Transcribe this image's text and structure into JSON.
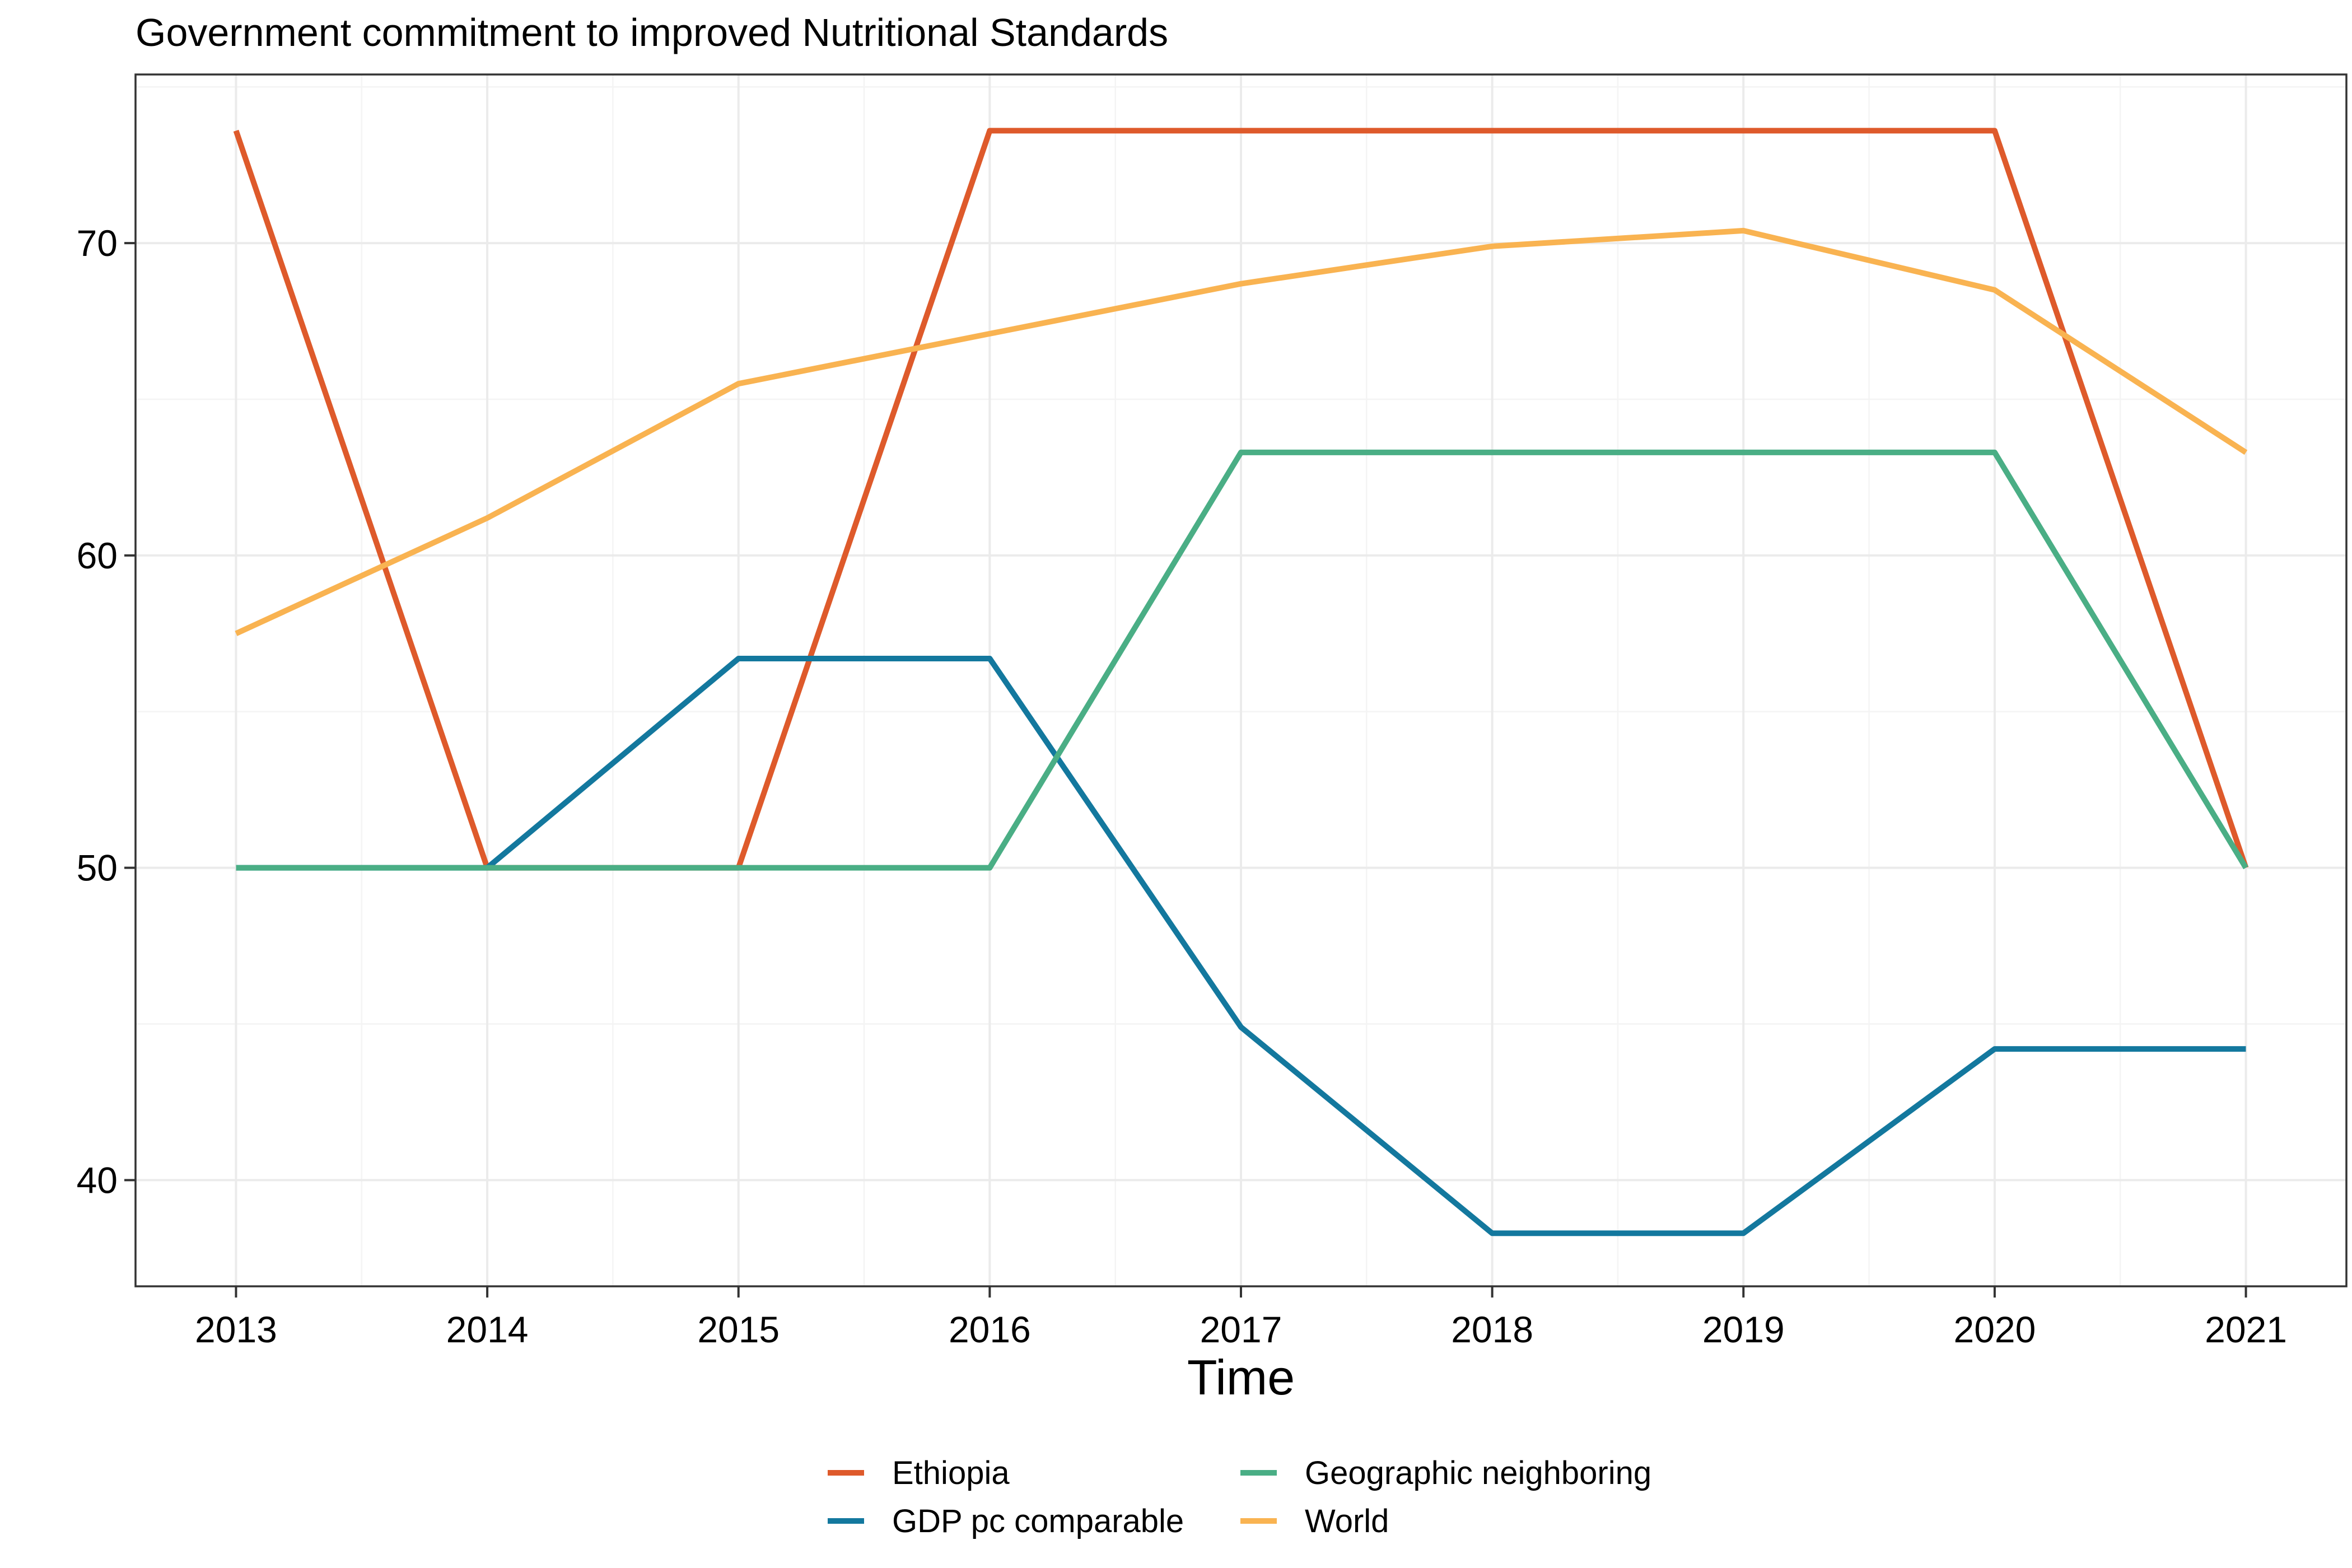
{
  "chart_data": {
    "type": "line",
    "title": "Government commitment to improved Nutritional Standards",
    "xlabel": "Time",
    "ylabel": "",
    "x": [
      2013,
      2014,
      2015,
      2016,
      2017,
      2018,
      2019,
      2020,
      2021
    ],
    "x_ticks": [
      "2013",
      "2014",
      "2015",
      "2016",
      "2017",
      "2018",
      "2019",
      "2020",
      "2021"
    ],
    "y_ticks": [
      "40",
      "50",
      "60",
      "70"
    ],
    "xlim": [
      2012.6,
      2021.4
    ],
    "ylim": [
      36.6,
      75.4
    ],
    "grid": true,
    "legend_position": "bottom",
    "series": [
      {
        "name": "Ethiopia",
        "color": "#DE5A2B",
        "values": [
          73.6,
          50.0,
          50.0,
          73.6,
          73.6,
          73.6,
          73.6,
          73.6,
          50.0
        ]
      },
      {
        "name": "GDP pc comparable",
        "color": "#13789E",
        "values": [
          50.0,
          50.0,
          56.7,
          56.7,
          44.9,
          38.3,
          38.3,
          44.2,
          44.2
        ]
      },
      {
        "name": "Geographic neighboring",
        "color": "#4AAE85",
        "values": [
          50.0,
          50.0,
          50.0,
          50.0,
          63.3,
          63.3,
          63.3,
          63.3,
          50.0
        ]
      },
      {
        "name": "World",
        "color": "#F9B351",
        "values": [
          57.5,
          61.2,
          65.5,
          67.1,
          68.7,
          69.9,
          70.4,
          68.5,
          63.3
        ]
      }
    ]
  }
}
